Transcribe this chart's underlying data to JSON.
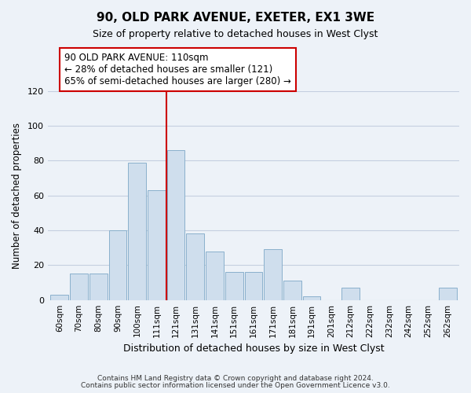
{
  "title": "90, OLD PARK AVENUE, EXETER, EX1 3WE",
  "subtitle": "Size of property relative to detached houses in West Clyst",
  "xlabel": "Distribution of detached houses by size in West Clyst",
  "ylabel": "Number of detached properties",
  "bar_labels": [
    "60sqm",
    "70sqm",
    "80sqm",
    "90sqm",
    "100sqm",
    "111sqm",
    "121sqm",
    "131sqm",
    "141sqm",
    "151sqm",
    "161sqm",
    "171sqm",
    "181sqm",
    "191sqm",
    "201sqm",
    "212sqm",
    "222sqm",
    "232sqm",
    "242sqm",
    "252sqm",
    "262sqm"
  ],
  "bar_values": [
    3,
    15,
    15,
    40,
    79,
    63,
    86,
    38,
    28,
    16,
    16,
    29,
    11,
    2,
    0,
    7,
    0,
    0,
    0,
    0,
    7
  ],
  "bar_color": "#cfdeed",
  "bar_edge_color": "#8ab0cc",
  "highlight_bar_index": 5,
  "vertical_line_color": "#cc0000",
  "annotation_text": "90 OLD PARK AVENUE: 110sqm\n← 28% of detached houses are smaller (121)\n65% of semi-detached houses are larger (280) →",
  "annotation_box_edge_color": "#cc0000",
  "annotation_box_face_color": "#ffffff",
  "ylim": [
    0,
    120
  ],
  "yticks": [
    0,
    20,
    40,
    60,
    80,
    100,
    120
  ],
  "footer_line1": "Contains HM Land Registry data © Crown copyright and database right 2024.",
  "footer_line2": "Contains public sector information licensed under the Open Government Licence v3.0.",
  "bg_color": "#edf2f8",
  "plot_bg_color": "#edf2f8",
  "grid_color": "#c5cfe0"
}
